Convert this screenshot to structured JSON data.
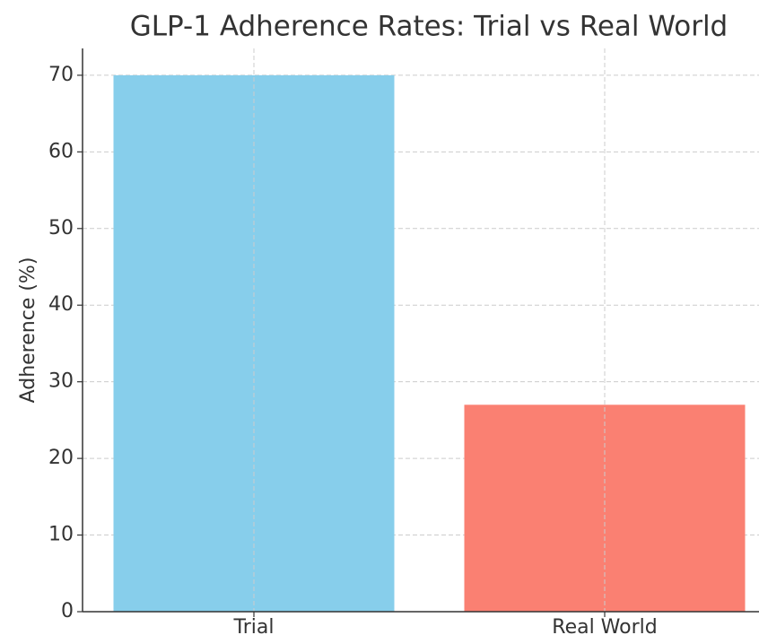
{
  "chart_data": {
    "type": "bar",
    "title": "GLP-1 Adherence Rates: Trial vs Real World",
    "y_label": "Adherence (%)",
    "categories": [
      "Trial",
      "Real World"
    ],
    "values": [
      70,
      27
    ],
    "colors": [
      "#87ceeb",
      "#fa8072"
    ],
    "ylim": [
      0,
      73.5
    ],
    "yticks": [
      0,
      10,
      20,
      30,
      40,
      50,
      60,
      70
    ],
    "grid": true
  }
}
